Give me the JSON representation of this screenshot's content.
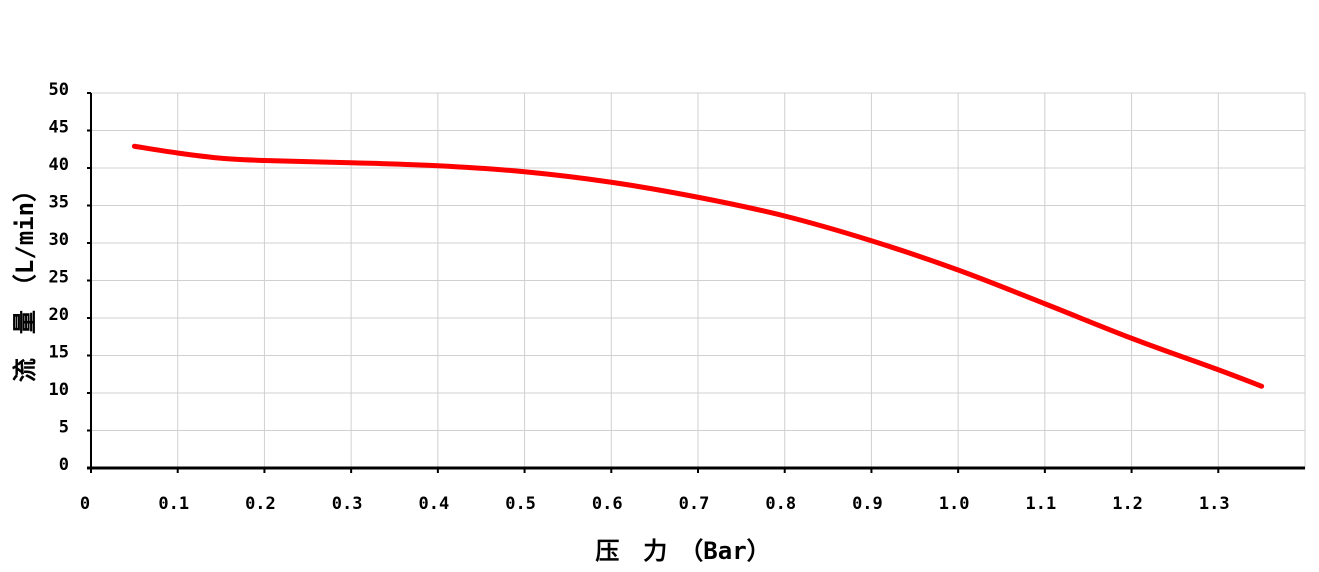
{
  "chart_data": {
    "type": "line",
    "x_label": "压　力　（Bar）",
    "y_label": "流　量　（L/min）",
    "x": [
      0.05,
      0.1,
      0.15,
      0.2,
      0.3,
      0.4,
      0.5,
      0.6,
      0.7,
      0.8,
      0.9,
      1.0,
      1.1,
      1.2,
      1.3,
      1.35
    ],
    "series": [
      {
        "color": "#ff0000",
        "values": [
          42.9,
          42.0,
          41.3,
          41.0,
          40.7,
          40.3,
          39.5,
          38.1,
          36.1,
          33.6,
          30.3,
          26.4,
          21.9,
          17.3,
          13.1,
          10.9
        ]
      }
    ],
    "xlim": [
      0,
      1.4
    ],
    "xticks": [
      0,
      0.1,
      0.2,
      0.3,
      0.4,
      0.5,
      0.6,
      0.7,
      0.8,
      0.9,
      {
        "value": 1,
        "label": "1.0"
      },
      1.1,
      1.2,
      1.3
    ],
    "ylim": [
      0,
      50
    ],
    "yticks": [
      0,
      5,
      10,
      15,
      20,
      25,
      30,
      35,
      40,
      45,
      50
    ],
    "grid": true
  }
}
